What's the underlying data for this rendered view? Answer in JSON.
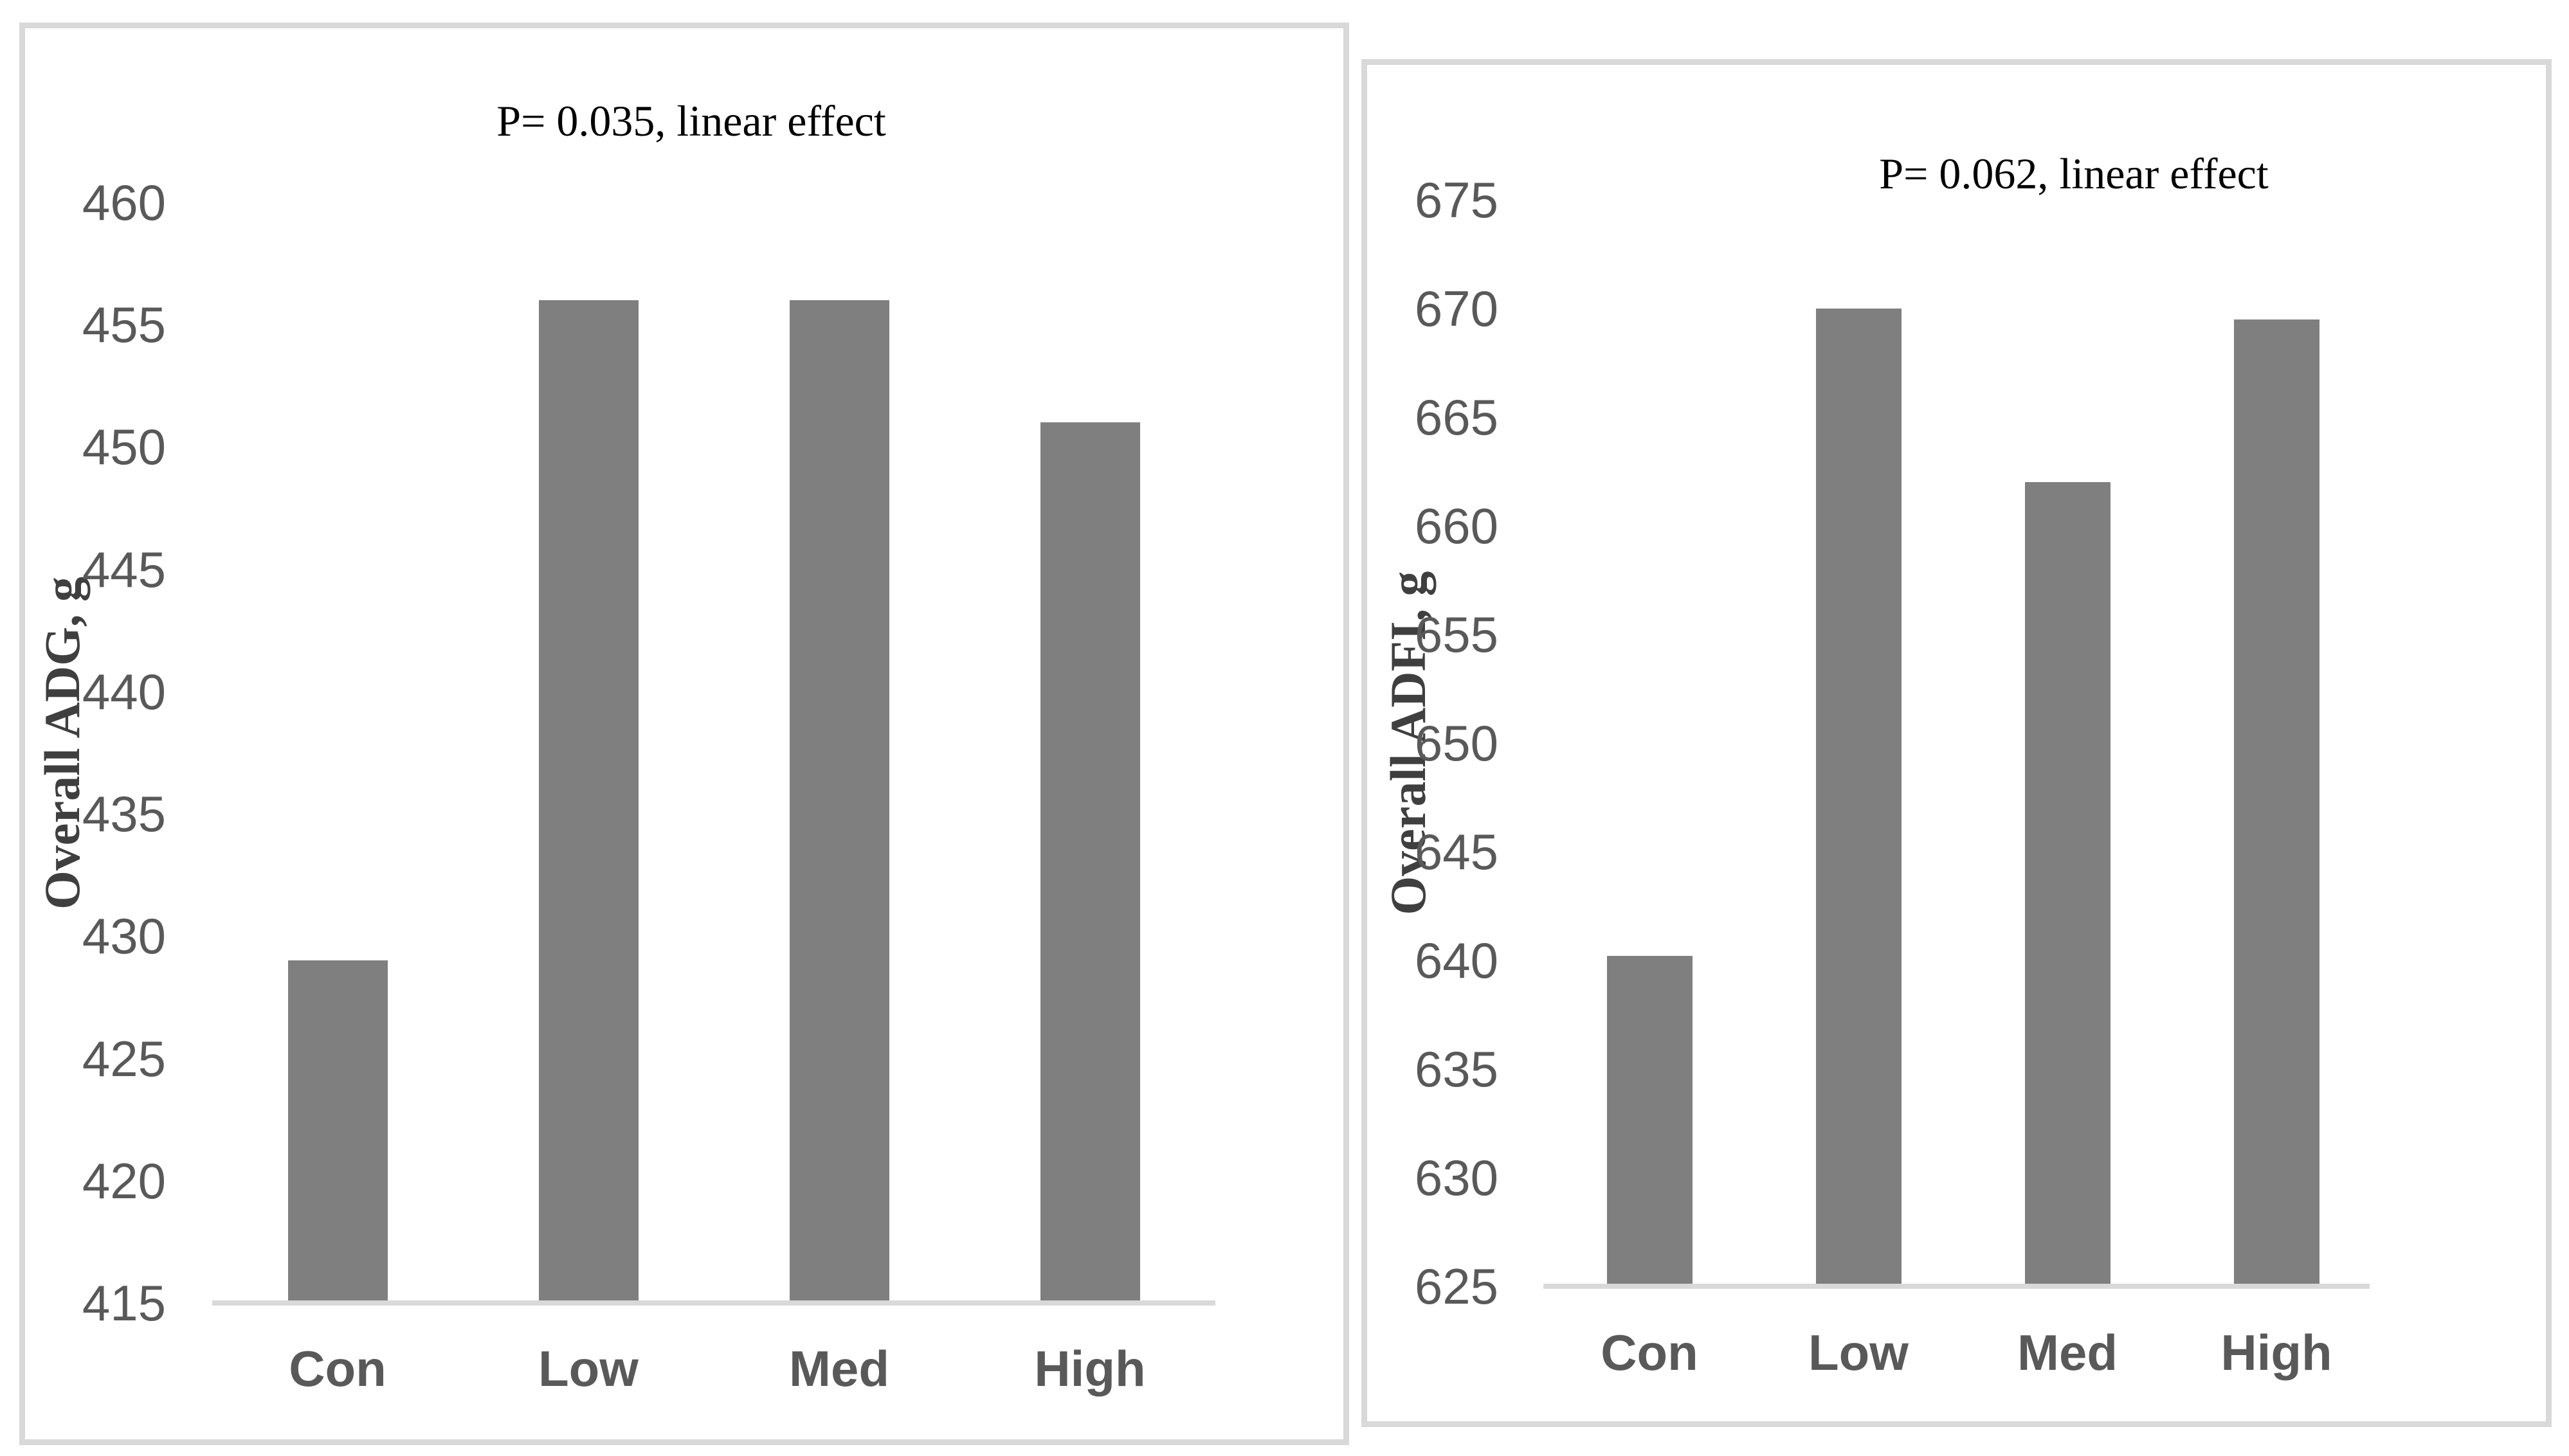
{
  "figure": {
    "background": "#ffffff",
    "panel_border_color": "#d9d9d9",
    "description": "Two side-by-side bar chart panels"
  },
  "chart_data": [
    {
      "type": "bar",
      "title": "P= 0.035, linear effect",
      "ylabel": "Overall ADG, g",
      "xlabel": "",
      "categories": [
        "Con",
        "Low",
        "Med",
        "High"
      ],
      "values": [
        429,
        456,
        456,
        451
      ],
      "ylim": [
        415,
        460
      ],
      "yticks": [
        415,
        420,
        425,
        430,
        435,
        440,
        445,
        450,
        455,
        460
      ],
      "ytick_step": 5,
      "grid": false,
      "legend": "none",
      "bar_color": "#7f7f7f",
      "axis_line_color": "#d9d9d9",
      "tick_text_color": "#595959",
      "category_text_color": "#595959",
      "title_text_color": "#000000",
      "ylabel_text_color": "#3f3f3f"
    },
    {
      "type": "bar",
      "title": "P= 0.062, linear effect",
      "ylabel": "Overall ADFI, g",
      "xlabel": "",
      "categories": [
        "Con",
        "Low",
        "Med",
        "High"
      ],
      "values": [
        640.2,
        670,
        662,
        669.5
      ],
      "ylim": [
        625,
        675
      ],
      "yticks": [
        625,
        630,
        635,
        640,
        645,
        650,
        655,
        660,
        665,
        670,
        675
      ],
      "ytick_step": 5,
      "grid": false,
      "legend": "none",
      "bar_color": "#7f7f7f",
      "axis_line_color": "#d9d9d9",
      "tick_text_color": "#595959",
      "category_text_color": "#595959",
      "title_text_color": "#000000",
      "ylabel_text_color": "#3f3f3f"
    }
  ]
}
